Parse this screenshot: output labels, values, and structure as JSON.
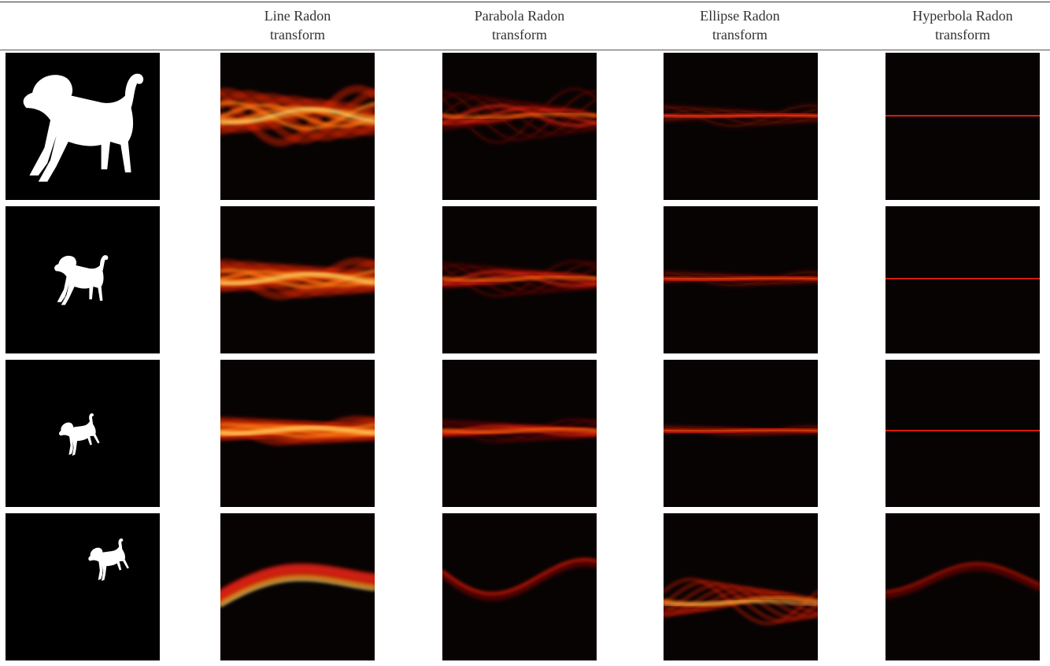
{
  "table": {
    "columns": [
      {
        "line1": "",
        "line2": ""
      },
      {
        "line1": "Line Radon",
        "line2": "transform"
      },
      {
        "line1": "Parabola Radon",
        "line2": "transform"
      },
      {
        "line1": "Ellipse Radon",
        "line2": "transform"
      },
      {
        "line1": "Hyperbola Radon",
        "line2": "transform"
      }
    ],
    "rows": [
      {
        "image": "dog-silhouette-large",
        "transforms": [
          "line-radon-heatmap",
          "parabola-radon-heatmap",
          "ellipse-radon-heatmap",
          "hyperbola-radon-heatmap"
        ]
      },
      {
        "image": "dog-silhouette-medium",
        "transforms": [
          "line-radon-heatmap",
          "parabola-radon-heatmap",
          "ellipse-radon-heatmap",
          "hyperbola-radon-heatmap"
        ]
      },
      {
        "image": "dog-silhouette-rotated-small",
        "transforms": [
          "line-radon-heatmap",
          "parabola-radon-heatmap",
          "ellipse-radon-heatmap",
          "hyperbola-radon-heatmap"
        ]
      },
      {
        "image": "dog-silhouette-rotated-shifted",
        "transforms": [
          "line-radon-heatmap",
          "parabola-radon-heatmap",
          "ellipse-radon-heatmap",
          "hyperbola-radon-heatmap"
        ]
      }
    ],
    "colors": {
      "background": "#080303",
      "heat_dark": "#5a0a04",
      "heat_red": "#e0200c",
      "heat_orange": "#ff7a10",
      "heat_yellow": "#ffe070"
    }
  }
}
